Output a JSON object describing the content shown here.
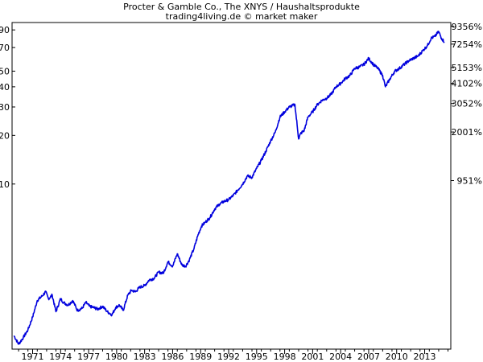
{
  "chart_data": {
    "type": "line",
    "title": "Procter & Gamble Co., The XNYS / Haushaltsprodukte",
    "subtitle": "trading4living.de © market maker",
    "y_scale": "log",
    "ylim": [
      0.95,
      100
    ],
    "xlim": [
      1969.3,
      2016.3
    ],
    "grid": false,
    "legend": "none",
    "line_color": "#0000dd",
    "y_ticks_left": [
      {
        "value": 10,
        "label": "10"
      },
      {
        "value": 20,
        "label": "20"
      },
      {
        "value": 30,
        "label": "30"
      },
      {
        "value": 40,
        "label": "40"
      },
      {
        "value": 50,
        "label": "50"
      },
      {
        "value": 70,
        "label": "70"
      },
      {
        "value": 90,
        "label": "90"
      }
    ],
    "y_ticks_right": [
      {
        "value": 10.5,
        "label": "951%"
      },
      {
        "value": 21.0,
        "label": "2001%"
      },
      {
        "value": 31.5,
        "label": "3052%"
      },
      {
        "value": 42.0,
        "label": "4102%"
      },
      {
        "value": 52.5,
        "label": "5153%"
      },
      {
        "value": 73.5,
        "label": "7254%"
      },
      {
        "value": 94.6,
        "label": "9356%"
      }
    ],
    "x_ticks": [
      "1971",
      "1974",
      "1977",
      "1980",
      "1983",
      "1986",
      "1989",
      "1992",
      "1995",
      "1998",
      "2001",
      "2004",
      "2007",
      "2010",
      "2013"
    ],
    "series": [
      {
        "x": [
          1969.5,
          1970.0,
          1970.5,
          1971.0,
          1971.5,
          1972.0,
          1972.5,
          1972.9,
          1973.2,
          1973.6,
          1974.0,
          1974.5,
          1974.8,
          1975.3,
          1975.8,
          1976.3,
          1976.8,
          1977.2,
          1977.6,
          1978.0,
          1978.5,
          1979.0,
          1979.5,
          1980.0,
          1980.4,
          1980.8,
          1981.2,
          1981.7,
          1982.1,
          1982.5,
          1983.0,
          1983.5,
          1984.0,
          1984.5,
          1985.0,
          1985.5,
          1986.0,
          1986.5,
          1987.0,
          1987.5,
          1987.9,
          1988.3,
          1988.8,
          1989.2,
          1989.6,
          1990.0,
          1990.5,
          1991.0,
          1991.5,
          1992.0,
          1992.5,
          1993.0,
          1993.5,
          1994.0,
          1994.5,
          1995.0,
          1995.5,
          1996.0,
          1996.5,
          1997.0,
          1997.5,
          1998.0,
          1998.5,
          1999.0,
          1999.6,
          2000.0,
          2000.2,
          2000.6,
          2001.0,
          2001.5,
          2002.0,
          2002.5,
          2003.0,
          2003.5,
          2004.0,
          2004.5,
          2005.0,
          2005.5,
          2006.0,
          2006.5,
          2007.0,
          2007.5,
          2008.0,
          2008.5,
          2009.0,
          2009.3,
          2009.8,
          2010.3,
          2010.8,
          2011.3,
          2011.8,
          2012.3,
          2012.8,
          2013.3,
          2013.8,
          2014.2,
          2014.6,
          2015.0,
          2015.3,
          2015.6
        ],
        "y": [
          1.15,
          1.02,
          1.12,
          1.25,
          1.5,
          1.9,
          2.02,
          2.15,
          1.95,
          2.05,
          1.62,
          1.95,
          1.85,
          1.78,
          1.9,
          1.65,
          1.7,
          1.85,
          1.75,
          1.72,
          1.68,
          1.75,
          1.62,
          1.55,
          1.72,
          1.78,
          1.65,
          2.05,
          2.2,
          2.15,
          2.3,
          2.35,
          2.55,
          2.6,
          2.85,
          2.8,
          3.3,
          3.1,
          3.7,
          3.15,
          3.1,
          3.4,
          4.0,
          4.8,
          5.5,
          5.8,
          6.2,
          7.0,
          7.5,
          7.8,
          8.0,
          8.5,
          9.2,
          10.0,
          11.2,
          11.0,
          12.5,
          14.0,
          16.0,
          18.5,
          21.0,
          26.0,
          28.0,
          30.0,
          31.0,
          19.0,
          20.5,
          21.5,
          26.0,
          28.0,
          31.0,
          33.0,
          34.0,
          36.0,
          40.0,
          42.0,
          45.0,
          47.0,
          52.0,
          53.0,
          55.0,
          60.0,
          55.0,
          52.0,
          47.0,
          40.0,
          45.0,
          50.0,
          52.0,
          55.0,
          58.0,
          60.0,
          62.0,
          67.0,
          72.0,
          80.0,
          82.0,
          88.0,
          80.0,
          76.0
        ]
      }
    ]
  }
}
